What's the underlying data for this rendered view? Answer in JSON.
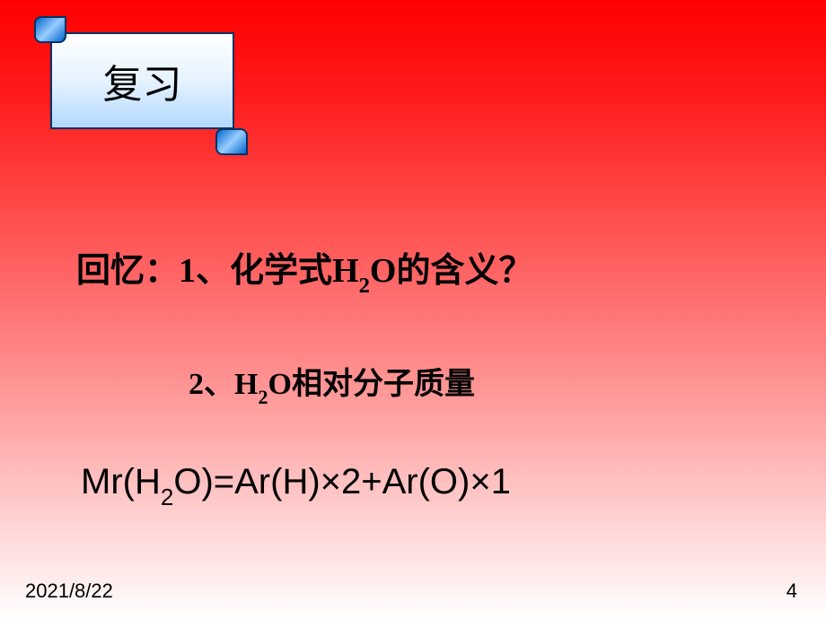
{
  "slide": {
    "background_gradient": {
      "start_color": "#ff0000",
      "mid_color": "#ff8080",
      "end_color": "#ffffff"
    }
  },
  "scroll": {
    "title": "复习",
    "title_fontsize": 44,
    "title_color": "#000000",
    "background_gradient": {
      "start": "#ffffff",
      "end": "#b3d9ff"
    },
    "border_color": "#003366",
    "curl_color": "#0066cc"
  },
  "content": {
    "line1": {
      "prefix": "回忆：1、化学式H",
      "sub1": "2",
      "suffix": "O的含义？",
      "fontsize": 38,
      "fontweight": "bold",
      "color": "#000000"
    },
    "line2": {
      "prefix": "2、H",
      "sub1": "2",
      "suffix": "O相对分子质量",
      "fontsize": 34,
      "fontweight": "bold",
      "color": "#000000"
    },
    "line3": {
      "part1": "Mr(H",
      "sub1": "2",
      "part2": "O)=Ar(H)×2+Ar(O)×1",
      "fontsize": 40,
      "fontweight": "normal",
      "color": "#000000"
    }
  },
  "footer": {
    "date": "2021/8/22",
    "page": "4",
    "fontsize": 22,
    "color": "#000000"
  }
}
